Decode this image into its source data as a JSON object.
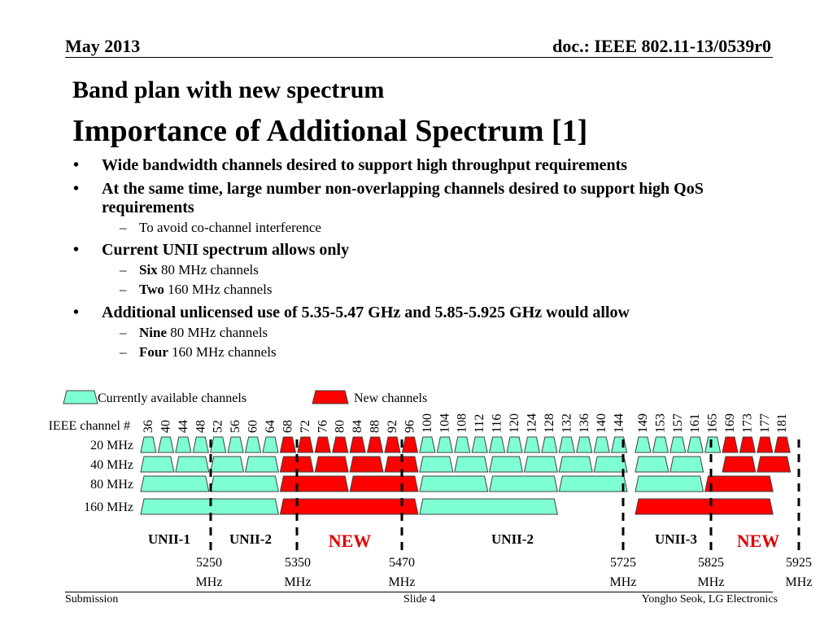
{
  "header": {
    "date": "May 2013",
    "doc": "doc.: IEEE 802.11-13/0539r0"
  },
  "title": {
    "line1": "Band plan with new spectrum",
    "line2": "Importance of Additional Spectrum [1]"
  },
  "bullets": [
    {
      "text": "Wide bandwidth channels desired to support high throughput requirements",
      "subs": []
    },
    {
      "text": "At the same time, large number non-overlapping channels desired to support high QoS requirements",
      "subs": [
        {
          "bold": "",
          "rest": "To avoid co-channel interference"
        }
      ]
    },
    {
      "text": "Current UNII spectrum allows only",
      "subs": [
        {
          "bold": "Six",
          "rest": " 80 MHz channels"
        },
        {
          "bold": "Two",
          "rest": " 160 MHz channels"
        }
      ]
    },
    {
      "text": "Additional unlicensed use of 5.35-5.47 GHz and 5.85-5.925 GHz would allow",
      "subs": [
        {
          "bold": "Nine",
          "rest": " 80 MHz channels"
        },
        {
          "bold": "Four",
          "rest": " 160 MHz channels"
        }
      ]
    }
  ],
  "band_plan": {
    "colors": {
      "current": "#7fffd4",
      "new": "#ff0000",
      "new_label": "#e00000"
    },
    "legend": {
      "current": "Currently available channels",
      "new": "New channels"
    },
    "channel_label": "IEEE channel #",
    "channels_lower": [
      "36",
      "40",
      "44",
      "48",
      "52",
      "56",
      "60",
      "64",
      "68",
      "72",
      "76",
      "80",
      "84",
      "88",
      "92",
      "96",
      "100",
      "104",
      "108",
      "112",
      "116",
      "120",
      "124",
      "128",
      "132",
      "136",
      "140",
      "144"
    ],
    "channels_upper": [
      "149",
      "153",
      "157",
      "161",
      "165",
      "169",
      "173",
      "177",
      "181"
    ],
    "new_lower": [
      "68",
      "72",
      "76",
      "80",
      "84",
      "88",
      "92",
      "96"
    ],
    "new_upper": [
      "169",
      "173",
      "177",
      "181"
    ],
    "row_labels": [
      "20 MHz",
      "40 MHz",
      "80 MHz",
      "160 MHz"
    ],
    "segments_lower": {
      "40": [
        {
          "first": 0,
          "count": 2,
          "new": false
        },
        {
          "first": 2,
          "count": 2,
          "new": false
        },
        {
          "first": 4,
          "count": 2,
          "new": false
        },
        {
          "first": 6,
          "count": 2,
          "new": false
        },
        {
          "first": 8,
          "count": 2,
          "new": true
        },
        {
          "first": 10,
          "count": 2,
          "new": true
        },
        {
          "first": 12,
          "count": 2,
          "new": true
        },
        {
          "first": 14,
          "count": 2,
          "new": true
        },
        {
          "first": 16,
          "count": 2,
          "new": false
        },
        {
          "first": 18,
          "count": 2,
          "new": false
        },
        {
          "first": 20,
          "count": 2,
          "new": false
        },
        {
          "first": 22,
          "count": 2,
          "new": false
        },
        {
          "first": 24,
          "count": 2,
          "new": false
        },
        {
          "first": 26,
          "count": 2,
          "new": false
        }
      ],
      "80": [
        {
          "first": 0,
          "count": 4,
          "new": false
        },
        {
          "first": 4,
          "count": 4,
          "new": false
        },
        {
          "first": 8,
          "count": 4,
          "new": true
        },
        {
          "first": 12,
          "count": 4,
          "new": true
        },
        {
          "first": 16,
          "count": 4,
          "new": false
        },
        {
          "first": 20,
          "count": 4,
          "new": false
        },
        {
          "first": 24,
          "count": 4,
          "new": false
        }
      ],
      "160": [
        {
          "first": 0,
          "count": 8,
          "new": false
        },
        {
          "first": 8,
          "count": 8,
          "new": true
        },
        {
          "first": 16,
          "count": 8,
          "new": false
        }
      ]
    },
    "segments_upper": {
      "40": [
        {
          "first": 0,
          "count": 2,
          "new": false
        },
        {
          "first": 2,
          "count": 2,
          "new": false
        },
        {
          "first": 5,
          "count": 2,
          "new": true
        },
        {
          "first": 7,
          "count": 2,
          "new": true
        }
      ],
      "80": [
        {
          "first": 0,
          "count": 4,
          "new": false
        },
        {
          "first": 4,
          "count": 4,
          "new": true
        }
      ],
      "160": [
        {
          "first": 0,
          "count": 8,
          "new": true
        }
      ]
    },
    "bands": [
      {
        "label": "UNII-1",
        "new": false
      },
      {
        "label": "UNII-2",
        "new": false
      },
      {
        "label": "NEW",
        "new": true
      },
      {
        "label": "UNII-2",
        "new": false
      },
      {
        "label": "UNII-3",
        "new": false
      },
      {
        "label": "NEW",
        "new": true
      }
    ],
    "freq_markers": [
      {
        "value": "5250",
        "unit": "MHz"
      },
      {
        "value": "5350",
        "unit": "MHz"
      },
      {
        "value": "5470",
        "unit": "MHz"
      },
      {
        "value": "5725",
        "unit": "MHz"
      },
      {
        "value": "5825",
        "unit": "MHz"
      },
      {
        "value": "5925",
        "unit": "MHz"
      }
    ]
  },
  "footer": {
    "left": "Submission",
    "center": "Slide 4",
    "right": "Yongho Seok, LG Electronics"
  }
}
